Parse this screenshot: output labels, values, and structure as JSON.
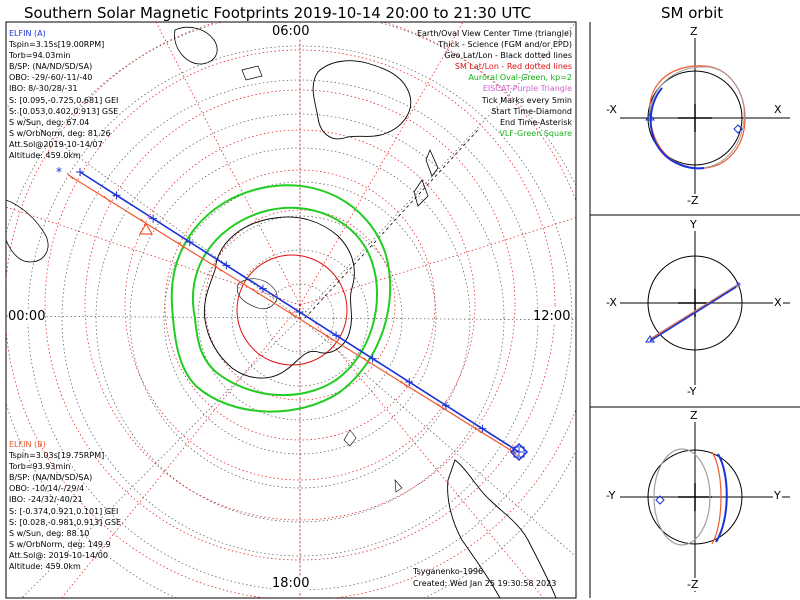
{
  "title": "Southern Solar Magnetic Footprints 2019-10-14 20:00 to 21:30 UTC",
  "sm_orbit_title": "SM orbit",
  "elfin_a": {
    "header": "ELFIN (A)",
    "lines": [
      "Tspin=3.15s[19.00RPM]",
      "Torb=94.03min",
      "B/SP: (NA/ND/SD/SA)",
      "OBO: -29/-60/-11/-40",
      "IBO: 8/-30/28/-31",
      "S: [0.095,-0.725,0.681] GEI",
      "S: [0.053,0.402,0.913] GSE",
      "S w/Sun, deg: 67.04",
      "S w/OrbNorm, deg: 81.26",
      "Att.Sol@2019-10-14/07",
      "Altitude: 459.0km"
    ]
  },
  "elfin_b": {
    "header": "ELFIN (B)",
    "lines": [
      "Tspin=3.03s[19.75RPM]",
      "Torb=93.93min",
      "B/SP: (NA/ND/SD/SA)",
      "OBO: -10/14/-/29/4",
      "IBO: -24/32/-40/21",
      "S: [-0.374,0.921,0.101] GEI",
      "S: [0.028,-0.981,0.913] GSE",
      "S w/Sun, deg: 88.10",
      "S w/OrbNorm, deg: 149.9",
      "Att.Sol@: 2019-10-14/00",
      "Altitude: 459.0km"
    ]
  },
  "legend": [
    {
      "text": "Earth/Oval View Center Time (triangle)",
      "color": "#000000"
    },
    {
      "text": "Thick - Science (FGM and/or EPD)",
      "color": "#000000"
    },
    {
      "text": "Geo Lat/Lon - Black dotted lines",
      "color": "#000000"
    },
    {
      "text": "SM Lat/Lon - Red dotted lines",
      "color": "#e01010"
    },
    {
      "text": "Auroral Oval-Green, kp=2",
      "color": "#10b010"
    },
    {
      "text": "EISCAT-Purple Triangle",
      "color": "#d060d0"
    },
    {
      "text": "Tick Marks every 5min",
      "color": "#000000"
    },
    {
      "text": "Start Time-Diamond",
      "color": "#000000"
    },
    {
      "text": "End Time-Asterisk",
      "color": "#000000"
    },
    {
      "text": "VLF-Green Square",
      "color": "#20b020"
    }
  ],
  "mlt_labels": {
    "top": "06:00",
    "left": "00:00",
    "right": "12:00",
    "bottom": "18:00"
  },
  "credits": [
    "Tsyganenko-1996",
    "Created: Wed Jan 25 19:30:58 2023"
  ],
  "panels": [
    {
      "top": "Z",
      "bottom": "-Z",
      "left": "-X",
      "right": "X"
    },
    {
      "top": "Y",
      "bottom": "-Y",
      "left": "-X",
      "right": "X"
    },
    {
      "top": "Z",
      "bottom": "-Z",
      "left": "-Y",
      "right": "Y"
    }
  ],
  "colors": {
    "elfin_a": "#1a33d8",
    "elfin_b": "#ef5a2e",
    "sm_grid": "#e01010",
    "oval": "#22cc22",
    "orbit_gray": "#a0a0a0"
  }
}
